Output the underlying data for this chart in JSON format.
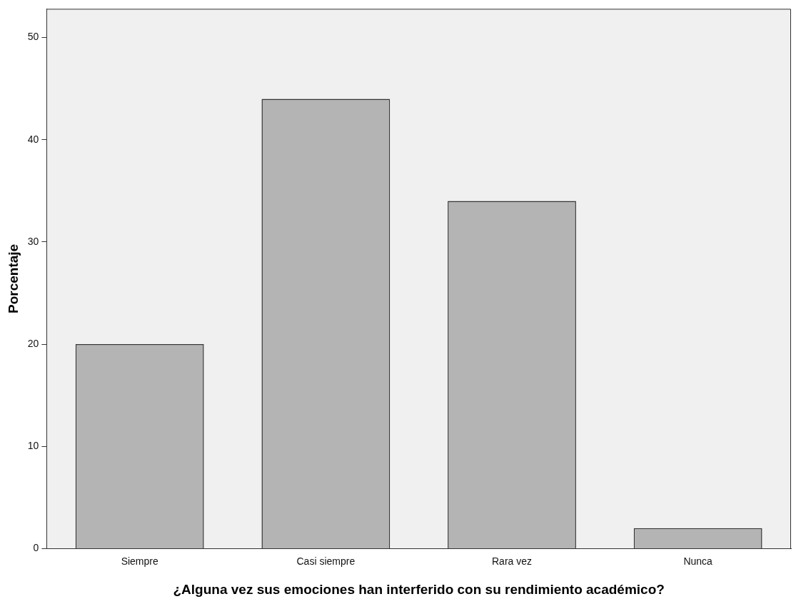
{
  "chart_data": {
    "type": "bar",
    "xlabel": "¿Alguna vez sus emociones han interferido con su rendimiento académico?",
    "ylabel": "Porcentaje",
    "categories": [
      "Siempre",
      "Casi siempre",
      "Rara vez",
      "Nunca"
    ],
    "values": [
      20,
      44,
      34,
      2
    ],
    "color": "#b4b4b4",
    "ylim": [
      0,
      52.8
    ],
    "yticks": [
      0,
      10,
      20,
      30,
      40,
      50
    ],
    "grid": false,
    "legend": false
  }
}
